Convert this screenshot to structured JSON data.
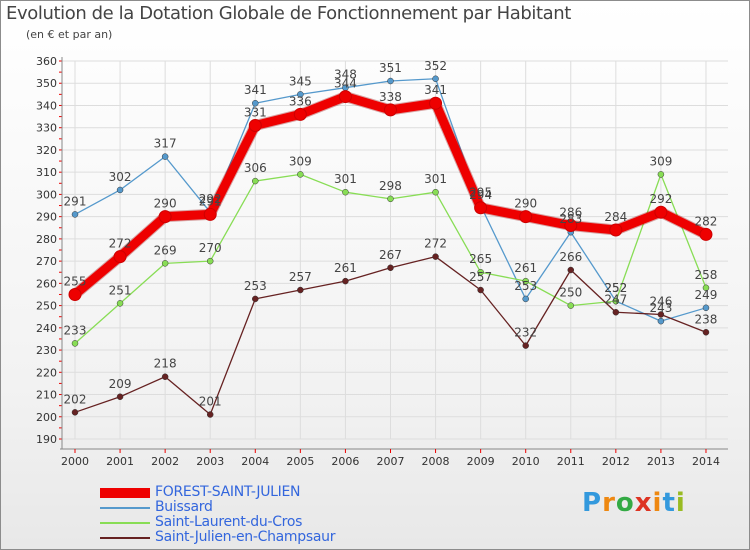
{
  "title": "Evolution de la Dotation Globale de Fonctionnement par Habitant",
  "subtitle": "(en € et par an)",
  "logo": {
    "text": [
      "P",
      "r",
      "o",
      "x",
      "i",
      "t",
      "i"
    ],
    "colors": [
      "#3399dd",
      "#ee8811",
      "#33aa44",
      "#dd3322",
      "#ee8811",
      "#3399dd",
      "#99bb22"
    ]
  },
  "chart_data": {
    "type": "line",
    "title": "Evolution de la Dotation Globale de Fonctionnement par Habitant",
    "subtitle": "(en € et par an)",
    "x": [
      "2000",
      "2001",
      "2002",
      "2003",
      "2004",
      "2005",
      "2006",
      "2007",
      "2008",
      "2009",
      "2010",
      "2011",
      "2012",
      "2013",
      "2014"
    ],
    "ylim": [
      190,
      360
    ],
    "yticks": [
      "190",
      "200",
      "210",
      "220",
      "230",
      "240",
      "250",
      "260",
      "270",
      "280",
      "290",
      "300",
      "310",
      "320",
      "330",
      "340",
      "350",
      "360"
    ],
    "grid": true,
    "series": [
      {
        "name": "FOREST-SAINT-JULIEN",
        "color": "#ee0000",
        "main": true,
        "values": [
          255,
          272,
          290,
          291,
          331,
          336,
          344,
          338,
          341,
          294,
          290,
          286,
          284,
          292,
          282
        ]
      },
      {
        "name": "Buissard",
        "color": "#5599cc",
        "main": false,
        "values": [
          291,
          302,
          317,
          292,
          341,
          345,
          348,
          351,
          352,
          295,
          253,
          283,
          252,
          243,
          249
        ]
      },
      {
        "name": "Saint-Laurent-du-Cros",
        "color": "#88dd55",
        "main": false,
        "values": [
          233,
          251,
          269,
          270,
          306,
          309,
          301,
          298,
          301,
          265,
          261,
          250,
          252,
          309,
          258
        ]
      },
      {
        "name": "Saint-Julien-en-Champsaur",
        "color": "#662222",
        "main": false,
        "values": [
          202,
          209,
          218,
          201,
          253,
          257,
          261,
          267,
          272,
          257,
          232,
          266,
          247,
          246,
          238
        ]
      }
    ]
  }
}
